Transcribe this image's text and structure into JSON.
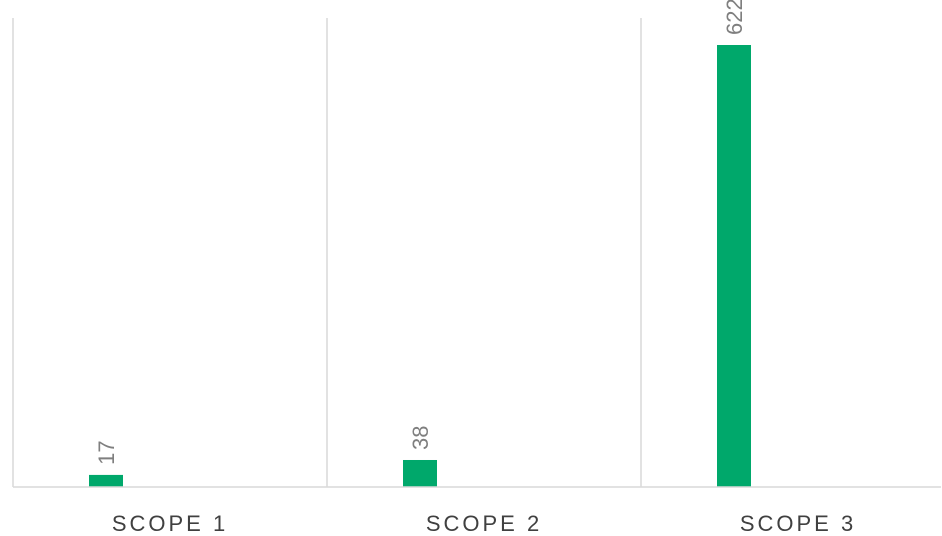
{
  "chart_data": {
    "type": "bar",
    "categories": [
      "SCOPE 1",
      "SCOPE 2",
      "SCOPE 3"
    ],
    "values": [
      17,
      38,
      622
    ],
    "title": "",
    "xlabel": "",
    "ylabel": "",
    "ylim": [
      0,
      660
    ],
    "grid": "vertical category separators",
    "legend": "none",
    "bar_color": "#00a86b",
    "data_labels": [
      "17",
      "38",
      "622"
    ],
    "data_label_rotation": "vertical"
  }
}
